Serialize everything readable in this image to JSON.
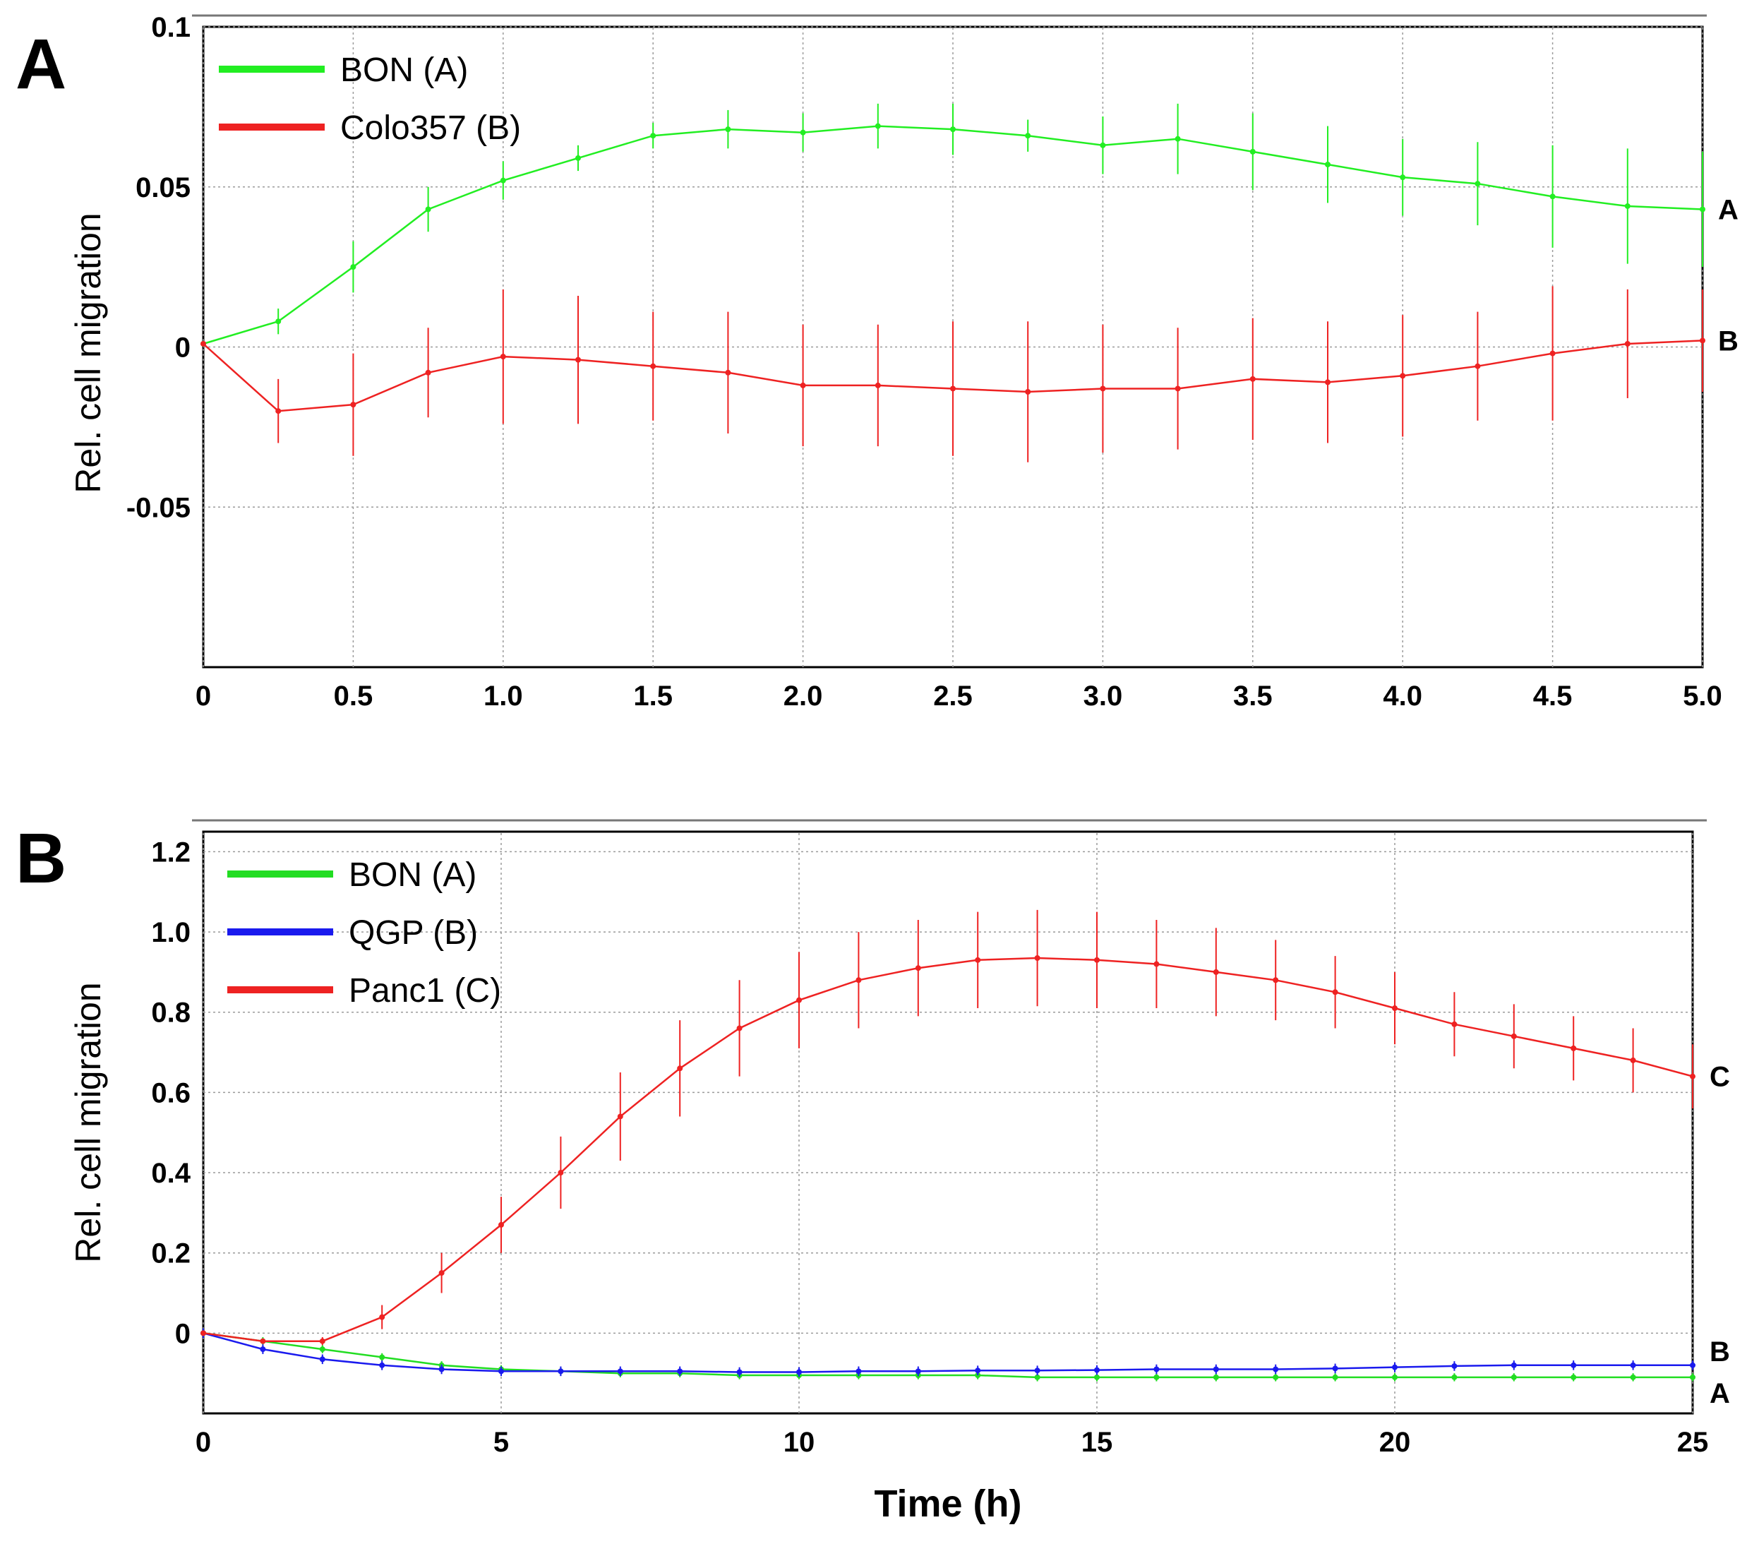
{
  "chart_data": [
    {
      "type": "line",
      "panel_label": "A",
      "title": "",
      "xlabel": "",
      "ylabel": "Rel. cell migration",
      "xlim": [
        0,
        5.0
      ],
      "ylim": [
        -0.1,
        0.1
      ],
      "x_ticks": [
        "0",
        "0.5",
        "1.0",
        "1.5",
        "2.0",
        "2.5",
        "3.0",
        "3.5",
        "4.0",
        "4.5",
        "5.0"
      ],
      "y_ticks": [
        "0.1",
        "0.05",
        "0",
        "-0.05"
      ],
      "grid": true,
      "legend_position": "top-left",
      "series": [
        {
          "name": "BON (A)",
          "end_label": "A",
          "color": "#22ee22",
          "x": [
            0,
            0.25,
            0.5,
            0.75,
            1.0,
            1.25,
            1.5,
            1.75,
            2.0,
            2.25,
            2.5,
            2.75,
            3.0,
            3.25,
            3.5,
            3.75,
            4.0,
            4.25,
            4.5,
            4.75,
            5.0
          ],
          "values": [
            0.001,
            0.008,
            0.025,
            0.043,
            0.052,
            0.059,
            0.066,
            0.068,
            0.067,
            0.069,
            0.068,
            0.066,
            0.063,
            0.065,
            0.061,
            0.057,
            0.053,
            0.051,
            0.047,
            0.044,
            0.043
          ],
          "errors": [
            0.0,
            0.004,
            0.008,
            0.007,
            0.006,
            0.004,
            0.004,
            0.006,
            0.006,
            0.007,
            0.008,
            0.005,
            0.009,
            0.011,
            0.012,
            0.012,
            0.012,
            0.013,
            0.016,
            0.018,
            0.018
          ]
        },
        {
          "name": "Colo357 (B)",
          "end_label": "B",
          "color": "#ee2222",
          "x": [
            0,
            0.25,
            0.5,
            0.75,
            1.0,
            1.25,
            1.5,
            1.75,
            2.0,
            2.25,
            2.5,
            2.75,
            3.0,
            3.25,
            3.5,
            3.75,
            4.0,
            4.25,
            4.5,
            4.75,
            5.0
          ],
          "values": [
            0.001,
            -0.02,
            -0.018,
            -0.008,
            -0.003,
            -0.004,
            -0.006,
            -0.008,
            -0.012,
            -0.012,
            -0.013,
            -0.014,
            -0.013,
            -0.013,
            -0.01,
            -0.011,
            -0.009,
            -0.006,
            -0.002,
            0.001,
            0.002
          ],
          "errors": [
            0.0,
            0.01,
            0.016,
            0.014,
            0.021,
            0.02,
            0.017,
            0.019,
            0.019,
            0.019,
            0.021,
            0.022,
            0.02,
            0.019,
            0.019,
            0.019,
            0.019,
            0.017,
            0.021,
            0.017,
            0.016
          ]
        }
      ]
    },
    {
      "type": "line",
      "panel_label": "B",
      "title": "",
      "xlabel": "Time (h)",
      "ylabel": "Rel. cell migration",
      "xlim": [
        0,
        25
      ],
      "ylim": [
        -0.2,
        1.25
      ],
      "x_ticks": [
        "0",
        "5",
        "10",
        "15",
        "20",
        "25"
      ],
      "y_ticks": [
        "1.2",
        "1.0",
        "0.8",
        "0.6",
        "0.4",
        "0.2",
        "0"
      ],
      "grid": true,
      "legend_position": "top-left",
      "series": [
        {
          "name": "BON (A)",
          "end_label": "A",
          "color": "#22dd22",
          "x": [
            0,
            1,
            2,
            3,
            4,
            5,
            6,
            7,
            8,
            9,
            10,
            11,
            12,
            13,
            14,
            15,
            16,
            17,
            18,
            19,
            20,
            21,
            22,
            23,
            24,
            25
          ],
          "values": [
            0.0,
            -0.02,
            -0.04,
            -0.06,
            -0.08,
            -0.09,
            -0.095,
            -0.1,
            -0.1,
            -0.105,
            -0.105,
            -0.105,
            -0.105,
            -0.105,
            -0.11,
            -0.11,
            -0.11,
            -0.11,
            -0.11,
            -0.11,
            -0.11,
            -0.11,
            -0.11,
            -0.11,
            -0.11,
            -0.11
          ],
          "error": 0.01
        },
        {
          "name": "QGP (B)",
          "end_label": "B",
          "color": "#1a1aee",
          "x": [
            0,
            1,
            2,
            3,
            4,
            5,
            6,
            7,
            8,
            9,
            10,
            11,
            12,
            13,
            14,
            15,
            16,
            17,
            18,
            19,
            20,
            21,
            22,
            23,
            24,
            25
          ],
          "values": [
            0.0,
            -0.04,
            -0.065,
            -0.08,
            -0.09,
            -0.095,
            -0.095,
            -0.095,
            -0.095,
            -0.097,
            -0.097,
            -0.095,
            -0.095,
            -0.093,
            -0.093,
            -0.092,
            -0.09,
            -0.09,
            -0.09,
            -0.088,
            -0.085,
            -0.082,
            -0.08,
            -0.08,
            -0.08,
            -0.08
          ],
          "error": 0.012
        },
        {
          "name": "Panc1 (C)",
          "end_label": "C",
          "color": "#ee2222",
          "x": [
            0,
            1,
            2,
            3,
            4,
            5,
            6,
            7,
            8,
            9,
            10,
            11,
            12,
            13,
            14,
            15,
            16,
            17,
            18,
            19,
            20,
            21,
            22,
            23,
            24,
            25
          ],
          "values": [
            0.0,
            -0.02,
            -0.02,
            0.04,
            0.15,
            0.27,
            0.4,
            0.54,
            0.66,
            0.76,
            0.83,
            0.88,
            0.91,
            0.93,
            0.935,
            0.93,
            0.92,
            0.9,
            0.88,
            0.85,
            0.81,
            0.77,
            0.74,
            0.71,
            0.68,
            0.64
          ],
          "errors": [
            0.0,
            0.005,
            0.01,
            0.03,
            0.05,
            0.07,
            0.09,
            0.11,
            0.12,
            0.12,
            0.12,
            0.12,
            0.12,
            0.12,
            0.12,
            0.12,
            0.11,
            0.11,
            0.1,
            0.09,
            0.09,
            0.08,
            0.08,
            0.08,
            0.08,
            0.08
          ]
        }
      ]
    }
  ]
}
